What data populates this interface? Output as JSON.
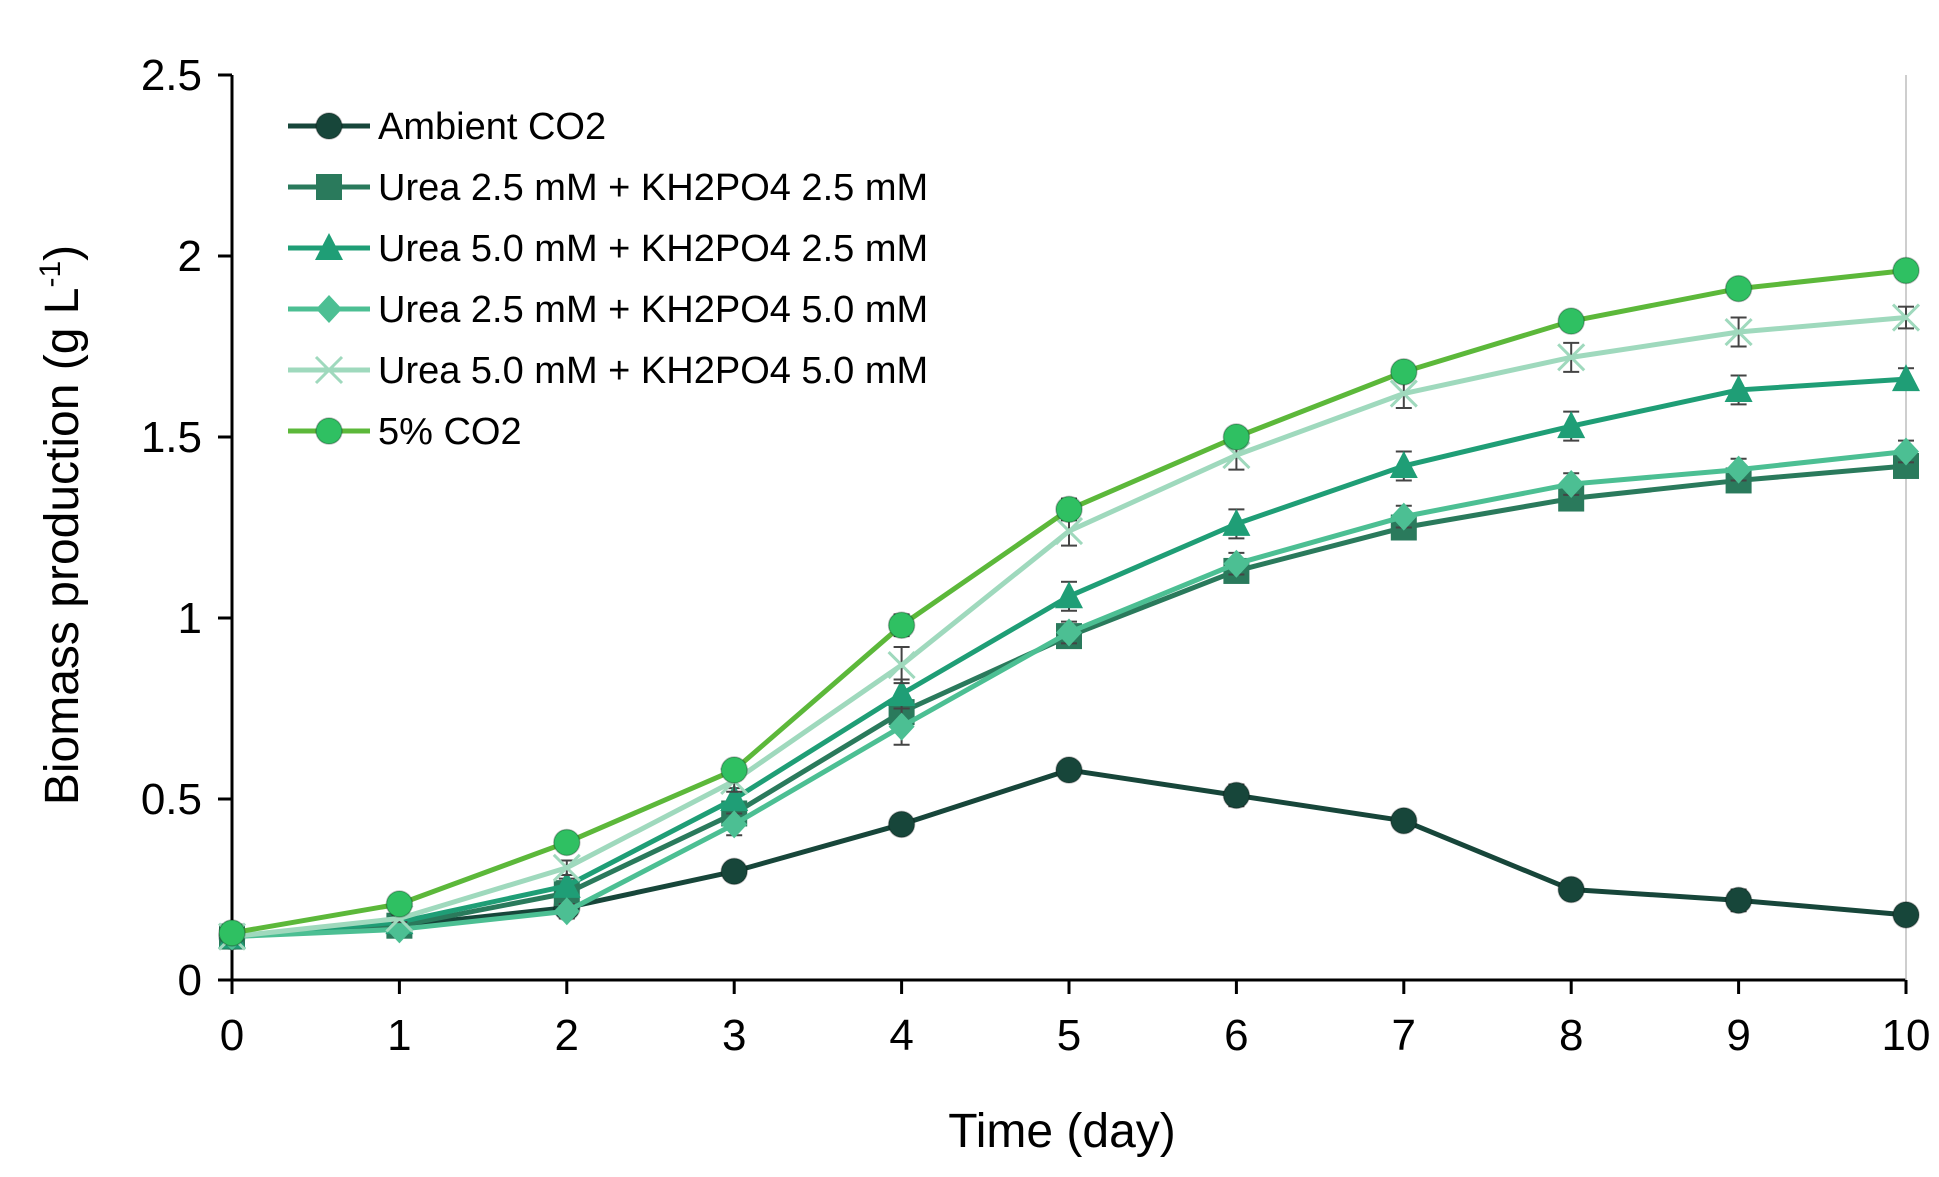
{
  "chart_data": {
    "type": "line",
    "title": "",
    "xlabel": "Time (day)",
    "ylabel": "Biomass production (g L",
    "ylabel_sup": "-1",
    "ylabel_close": ")",
    "xlim": [
      0,
      10
    ],
    "ylim": [
      0,
      2.5
    ],
    "x": [
      0,
      1,
      2,
      3,
      4,
      5,
      6,
      7,
      8,
      9,
      10
    ],
    "x_tick_labels": [
      "0",
      "1",
      "2",
      "3",
      "4",
      "5",
      "6",
      "7",
      "8",
      "9",
      "10"
    ],
    "y_ticks": [
      0,
      0.5,
      1,
      1.5,
      2,
      2.5
    ],
    "y_tick_labels": [
      "0",
      "0.5",
      "1",
      "1.5",
      "2",
      "2.5"
    ],
    "grid": false,
    "legend_position": "top-left",
    "series": [
      {
        "name": "Ambient CO2",
        "color": "#17463a",
        "marker": "circle",
        "values": [
          0.12,
          0.15,
          0.2,
          0.3,
          0.43,
          0.58,
          0.51,
          0.44,
          0.25,
          0.22,
          0.18
        ],
        "errors": [
          0.01,
          0.01,
          0.01,
          0.02,
          0.02,
          0.02,
          0.03,
          0.02,
          0.02,
          0.03,
          0.02
        ]
      },
      {
        "name": "Urea 2.5 mM + KH2PO4 2.5 mM",
        "color": "#2a7a5c",
        "marker": "square",
        "values": [
          0.12,
          0.15,
          0.24,
          0.46,
          0.74,
          0.95,
          1.13,
          1.25,
          1.33,
          1.38,
          1.42
        ],
        "errors": [
          0.01,
          0.01,
          0.02,
          0.03,
          0.04,
          0.03,
          0.03,
          0.03,
          0.03,
          0.03,
          0.02
        ]
      },
      {
        "name": "Urea 5.0 mM + KH2PO4 2.5 mM",
        "color": "#1f9e76",
        "marker": "triangle",
        "values": [
          0.12,
          0.16,
          0.26,
          0.5,
          0.79,
          1.06,
          1.26,
          1.42,
          1.53,
          1.63,
          1.66
        ],
        "errors": [
          0.01,
          0.01,
          0.02,
          0.03,
          0.04,
          0.04,
          0.04,
          0.04,
          0.04,
          0.04,
          0.03
        ]
      },
      {
        "name": "Urea 2.5 mM + KH2PO4 5.0 mM",
        "color": "#4cbf93",
        "marker": "diamond",
        "values": [
          0.12,
          0.14,
          0.19,
          0.43,
          0.7,
          0.96,
          1.15,
          1.28,
          1.37,
          1.41,
          1.46
        ],
        "errors": [
          0.01,
          0.01,
          0.02,
          0.03,
          0.05,
          0.03,
          0.03,
          0.03,
          0.03,
          0.03,
          0.03
        ]
      },
      {
        "name": "Urea 5.0 mM + KH2PO4 5.0 mM",
        "color": "#9fd9bd",
        "marker": "cross",
        "values": [
          0.12,
          0.17,
          0.31,
          0.55,
          0.87,
          1.24,
          1.45,
          1.62,
          1.72,
          1.79,
          1.83
        ],
        "errors": [
          0.01,
          0.01,
          0.02,
          0.03,
          0.05,
          0.04,
          0.04,
          0.04,
          0.04,
          0.04,
          0.03
        ]
      },
      {
        "name": "5% CO2",
        "color": "#5cb83a",
        "marker_color": "#2fc062",
        "marker": "circle",
        "values": [
          0.13,
          0.21,
          0.38,
          0.58,
          0.98,
          1.3,
          1.5,
          1.68,
          1.82,
          1.91,
          1.96
        ],
        "errors": [
          0.01,
          0.01,
          0.02,
          0.02,
          0.03,
          0.03,
          0.02,
          0.02,
          0.02,
          0.02,
          0.02
        ]
      }
    ]
  }
}
